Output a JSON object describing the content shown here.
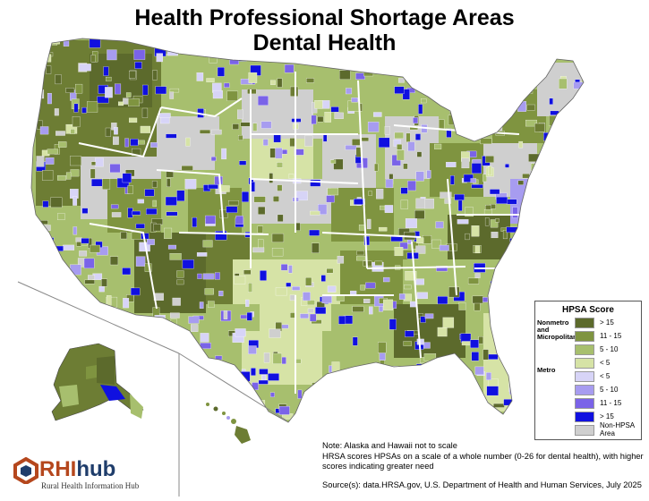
{
  "title_line1": "Health Professional Shortage Areas",
  "title_line2": "Dental Health",
  "legend": {
    "title": "HPSA Score",
    "nonmetro_label": "Nonmetro and Micropolitan",
    "metro_label": "Metro",
    "nonmetro_items": [
      {
        "label": "> 15",
        "color": "#5c6a2c"
      },
      {
        "label": "11 - 15",
        "color": "#7f9440"
      },
      {
        "label": "5 - 10",
        "color": "#a7bf6e"
      },
      {
        "label": "< 5",
        "color": "#d6e3a6"
      }
    ],
    "metro_items": [
      {
        "label": "< 5",
        "color": "#d7d4f7"
      },
      {
        "label": "5 - 10",
        "color": "#a79cf0"
      },
      {
        "label": "11 - 15",
        "color": "#7a63e8"
      },
      {
        "label": "> 15",
        "color": "#1010e0"
      }
    ],
    "non_hpsa": {
      "label": "Non-HPSA Area",
      "color": "#cfcfcf"
    }
  },
  "notes": {
    "line1": "Note: Alaska and Hawaii not to scale",
    "line2": "HRSA scores HPSAs on a scale of a whole number (0-26 for dental health), with higher",
    "line3": "scores indicating greater need",
    "source": "Source(s): data.HRSA.gov, U.S. Department of Health and Human Services, July 2025"
  },
  "logo": {
    "brand_a": "RHI",
    "brand_b": "hub",
    "subtitle": "Rural Health Information Hub",
    "color_a": "#b5471d",
    "color_b": "#1f3d6b"
  }
}
